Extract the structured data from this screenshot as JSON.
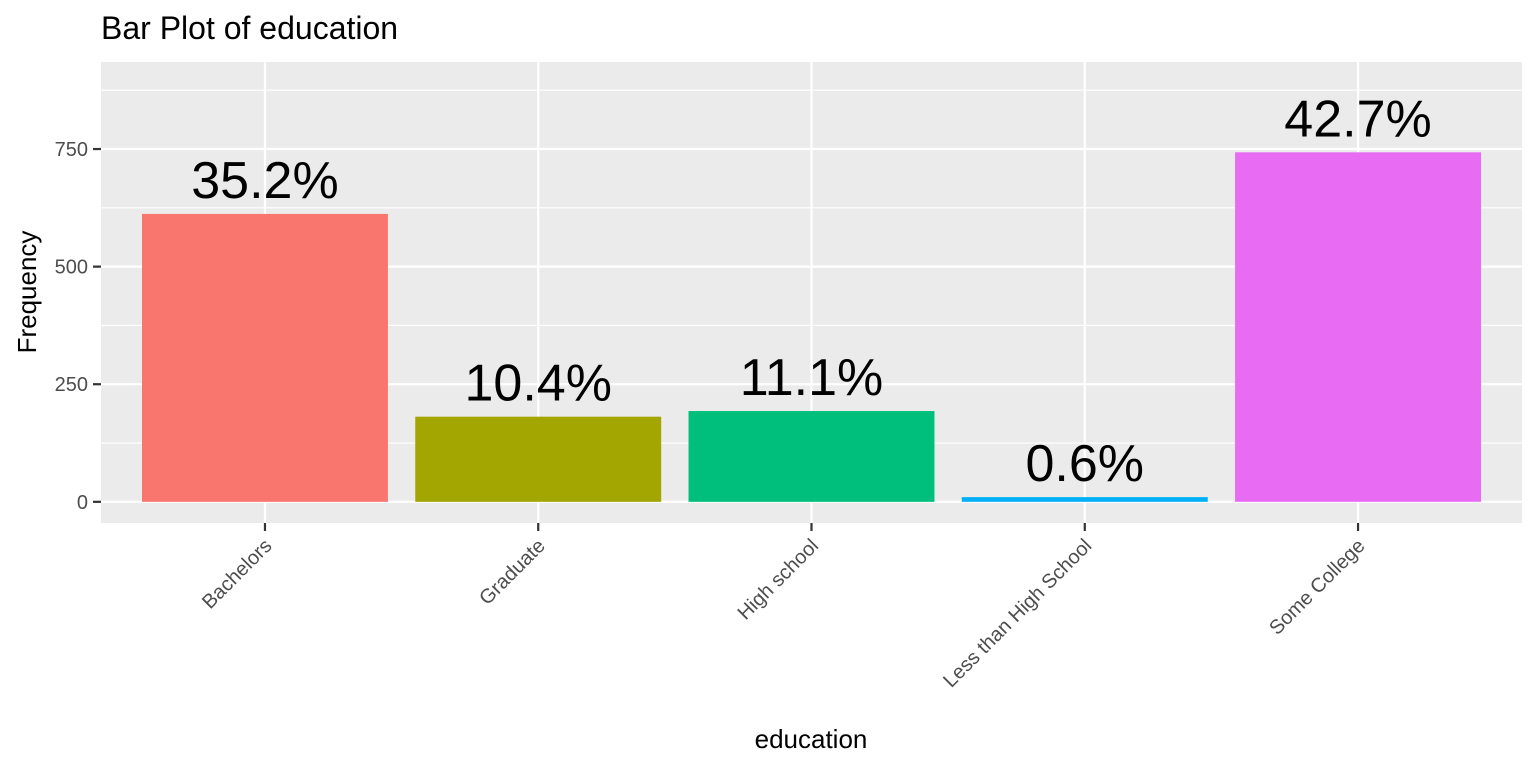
{
  "chart_data": {
    "type": "bar",
    "title": "Bar Plot of education",
    "xlabel": "education",
    "ylabel": "Frequency",
    "categories": [
      "Bachelors",
      "Graduate",
      "High school",
      "Less than High School",
      "Some College"
    ],
    "values": [
      612,
      181,
      193,
      10,
      743
    ],
    "labels": [
      "35.2%",
      "10.4%",
      "11.1%",
      "0.6%",
      "42.7%"
    ],
    "colors": [
      "#F8766D",
      "#A3A500",
      "#00BF7D",
      "#00B0F6",
      "#E76BF3"
    ],
    "yticks": [
      0,
      250,
      500,
      750
    ],
    "ylim": [
      -45,
      935
    ],
    "grid": true,
    "legend": "none",
    "panel_background": "#EBEBEB"
  }
}
